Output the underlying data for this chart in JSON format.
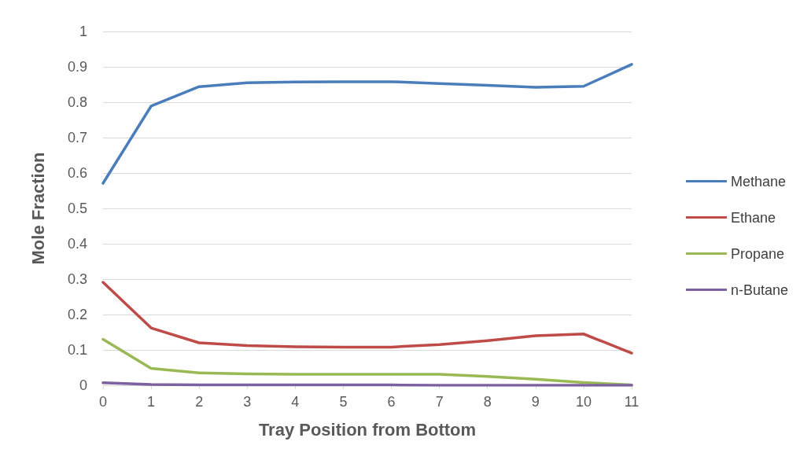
{
  "chart_data": {
    "type": "line",
    "xlabel": "Tray Position from Bottom",
    "ylabel": "Mole Fraction",
    "x": [
      0,
      1,
      2,
      3,
      4,
      5,
      6,
      7,
      8,
      9,
      10,
      11
    ],
    "series": [
      {
        "name": "Methane",
        "color": "#4a7ebb",
        "values": [
          0.571,
          0.789,
          0.844,
          0.855,
          0.857,
          0.858,
          0.858,
          0.853,
          0.848,
          0.842,
          0.845,
          0.907
        ]
      },
      {
        "name": "Ethane",
        "color": "#be4b48",
        "values": [
          0.291,
          0.162,
          0.12,
          0.112,
          0.109,
          0.108,
          0.108,
          0.115,
          0.126,
          0.14,
          0.145,
          0.091
        ]
      },
      {
        "name": "Propane",
        "color": "#98b954",
        "values": [
          0.13,
          0.048,
          0.035,
          0.032,
          0.031,
          0.031,
          0.031,
          0.031,
          0.025,
          0.017,
          0.008,
          0.001
        ]
      },
      {
        "name": "n-Butane",
        "color": "#7d60a0",
        "values": [
          0.007,
          0.002,
          0.001,
          0.001,
          0.001,
          0.001,
          0.001,
          0,
          0,
          0,
          0,
          0
        ]
      }
    ],
    "xlim": [
      0,
      11
    ],
    "xticks": [
      0,
      1,
      2,
      3,
      4,
      5,
      6,
      7,
      8,
      9,
      10,
      11
    ],
    "ylim": [
      0,
      1
    ],
    "yticks": [
      0,
      0.1,
      0.2,
      0.3,
      0.4,
      0.5,
      0.6,
      0.7,
      0.8,
      0.9,
      1
    ],
    "grid": "y",
    "legend": "right",
    "marker": "none",
    "line_style": "solid"
  }
}
